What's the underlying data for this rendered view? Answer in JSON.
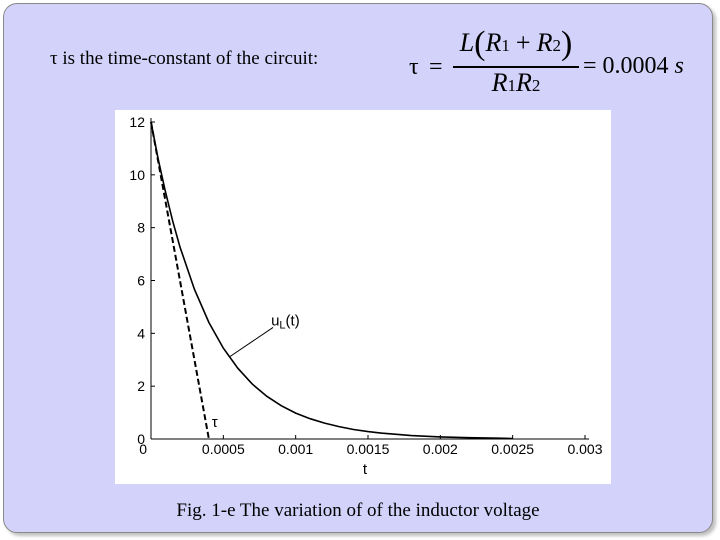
{
  "slide": {
    "headline": "τ is the time-constant of the circuit:",
    "formula": {
      "lhs": "τ",
      "equals": "=",
      "num_L": "L",
      "paren_open": "(",
      "num_R1": "R",
      "num_R1_sub": "1",
      "num_plus": "+",
      "num_R2": "R",
      "num_R2_sub": "2",
      "paren_close": ")",
      "den_R1": "R",
      "den_R1_sub": "1",
      "den_R2": "R",
      "den_R2_sub": "2",
      "rhs": "= 0.0004",
      "unit": "s"
    },
    "caption": "Fig. 1-e The variation of of the inductor voltage"
  },
  "chart_data": {
    "type": "line",
    "xlabel": "t",
    "ylabel": "",
    "xlim": [
      0,
      0.003
    ],
    "ylim": [
      0,
      12
    ],
    "x_ticks": [
      {
        "value": 0,
        "label": "0"
      },
      {
        "value": 0.0005,
        "label": "0.0005"
      },
      {
        "value": 0.001,
        "label": "0.001"
      },
      {
        "value": 0.0015,
        "label": "0.0015"
      },
      {
        "value": 0.002,
        "label": "0.002"
      },
      {
        "value": 0.0025,
        "label": "0.0025"
      },
      {
        "value": 0.003,
        "label": "0.003"
      }
    ],
    "y_ticks": [
      {
        "value": 0,
        "label": "0"
      },
      {
        "value": 2,
        "label": "2"
      },
      {
        "value": 4,
        "label": "4"
      },
      {
        "value": 6,
        "label": "6"
      },
      {
        "value": 8,
        "label": "8"
      },
      {
        "value": 10,
        "label": "10"
      },
      {
        "value": 12,
        "label": "12"
      }
    ],
    "grid": false,
    "series": [
      {
        "name": "uL(t)",
        "style": "solid",
        "color": "#000000",
        "x": [
          0,
          5e-05,
          0.0001,
          0.00015,
          0.0002,
          0.0003,
          0.0004,
          0.0005,
          0.0006,
          0.0007,
          0.0008,
          0.0009,
          0.001,
          0.0011,
          0.0012,
          0.0013,
          0.0014,
          0.0015,
          0.0016,
          0.0018,
          0.002,
          0.0022,
          0.0024,
          0.0025
        ],
        "y": [
          12,
          10.59,
          9.35,
          8.25,
          7.28,
          5.67,
          4.41,
          3.44,
          2.68,
          2.08,
          1.62,
          1.26,
          0.98,
          0.77,
          0.6,
          0.47,
          0.36,
          0.28,
          0.22,
          0.13,
          0.08,
          0.05,
          0.03,
          0.02
        ]
      },
      {
        "name": "tangent",
        "style": "dashed",
        "color": "#000000",
        "x": [
          0,
          0.0004
        ],
        "y": [
          12,
          0
        ]
      }
    ],
    "annotations": [
      {
        "text": "u",
        "sub": "L",
        "suffix": "(t)",
        "x": 0.00083,
        "y": 4.3,
        "arrow_to": [
          0.00054,
          3.1
        ]
      },
      {
        "text": "τ",
        "x": 0.00042,
        "y": 0.45
      }
    ]
  }
}
